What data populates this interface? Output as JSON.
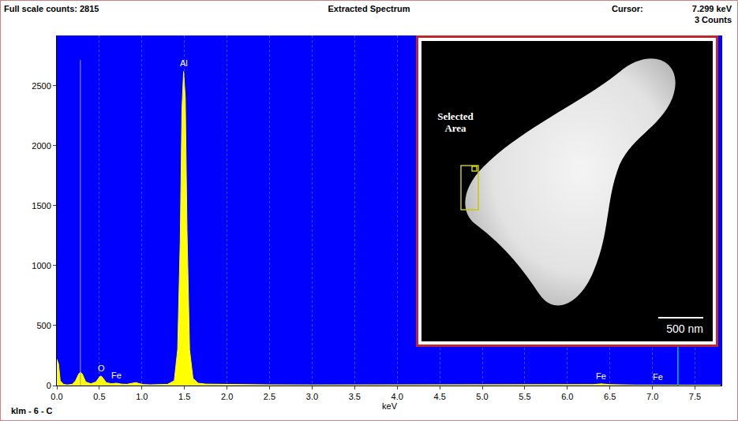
{
  "chart_data": {
    "type": "area",
    "title": "Extracted Spectrum",
    "header_left": "Full scale counts: 2815",
    "cursor_title": "Cursor:",
    "cursor_x": 7.299,
    "cursor_text": "7.299 keV",
    "cursor_counts": "3 Counts",
    "x_label": "keV",
    "footer": "klm - 6 - C",
    "klm_marker_x": 0.277,
    "color": "#ffff00",
    "x": [
      0,
      0.02,
      0.04,
      0.08,
      0.12,
      0.18,
      0.22,
      0.26,
      0.28,
      0.3,
      0.34,
      0.4,
      0.46,
      0.5,
      0.52,
      0.54,
      0.58,
      0.64,
      0.7,
      0.76,
      0.82,
      0.9,
      0.93,
      0.96,
      1.02,
      1.1,
      1.2,
      1.3,
      1.38,
      1.42,
      1.45,
      1.47,
      1.49,
      1.51,
      1.53,
      1.56,
      1.6,
      1.66,
      1.75,
      1.9,
      2.1,
      2.5,
      3.0,
      3.5,
      4.0,
      4.5,
      5.0,
      5.5,
      6.0,
      6.3,
      6.4,
      6.5,
      6.8,
      7.0,
      7.06,
      7.12,
      7.4,
      7.8
    ],
    "values": [
      220,
      180,
      40,
      10,
      5,
      10,
      40,
      100,
      110,
      95,
      30,
      15,
      30,
      70,
      80,
      65,
      25,
      15,
      20,
      12,
      10,
      18,
      25,
      18,
      8,
      6,
      6,
      10,
      40,
      300,
      1200,
      2300,
      2620,
      2400,
      1300,
      300,
      60,
      20,
      12,
      10,
      8,
      6,
      5,
      5,
      4,
      4,
      4,
      4,
      5,
      8,
      14,
      8,
      4,
      5,
      7,
      4,
      3,
      3
    ],
    "xlim": [
      0,
      7.82
    ],
    "ylim": [
      0,
      2920
    ],
    "xticks": [
      {
        "value": 0,
        "label": "0.0"
      },
      0.5,
      {
        "value": 1,
        "label": "1.0"
      },
      1.5,
      {
        "value": 2,
        "label": "2.0"
      },
      2.5,
      {
        "value": 3,
        "label": "3.0"
      },
      3.5,
      {
        "value": 4,
        "label": "4.0"
      },
      4.5,
      {
        "value": 5,
        "label": "5.0"
      },
      5.5,
      {
        "value": 6,
        "label": "6.0"
      },
      6.5,
      {
        "value": 7,
        "label": "7.0"
      },
      7.5
    ],
    "yticks": [
      0,
      500,
      1000,
      1500,
      2000,
      2500
    ],
    "grid": true,
    "peak_labels": [
      {
        "text": "Al",
        "x": 1.49,
        "y": 2640
      },
      {
        "text": "O",
        "x": 0.52,
        "y": 95
      },
      {
        "text": "Fe",
        "x": 0.7,
        "y": 30
      },
      {
        "text": "Fe",
        "x": 6.4,
        "y": 25
      },
      {
        "text": "Fe",
        "x": 7.06,
        "y": 20
      }
    ],
    "inset": {
      "label": "Selected Area",
      "scale_bar": "500 nm"
    }
  }
}
